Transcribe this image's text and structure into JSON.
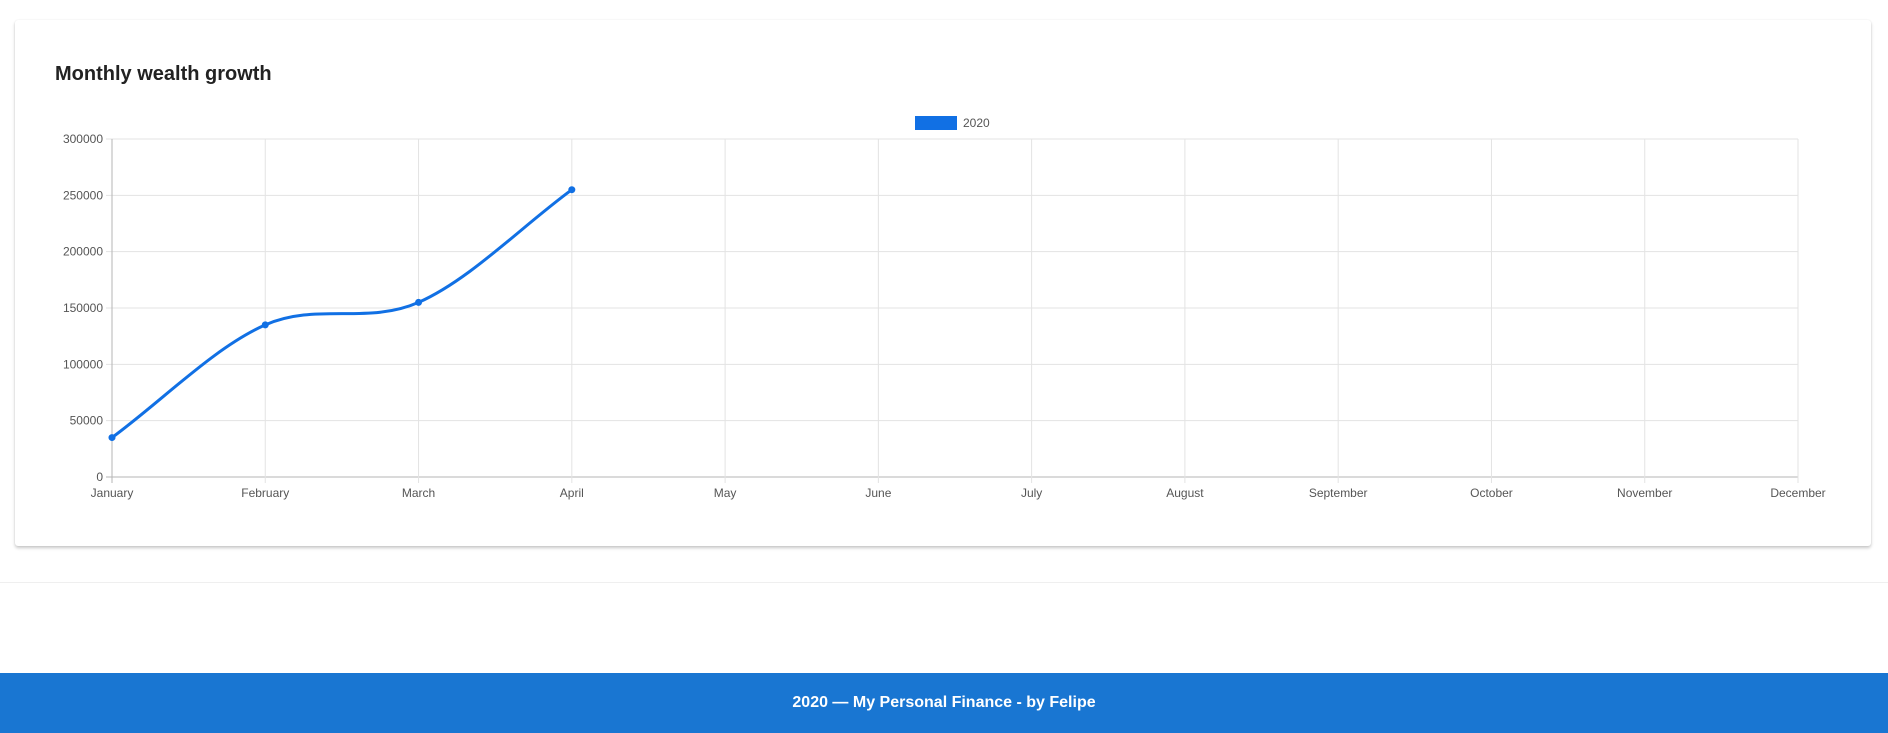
{
  "card": {
    "title": "Monthly wealth growth"
  },
  "chart_data": {
    "type": "line",
    "title": "Monthly wealth growth",
    "categories": [
      "January",
      "February",
      "March",
      "April",
      "May",
      "June",
      "July",
      "August",
      "September",
      "October",
      "November",
      "December"
    ],
    "series": [
      {
        "name": "2020",
        "color": "#1170e4",
        "values": [
          35000,
          135000,
          155000,
          255000,
          null,
          null,
          null,
          null,
          null,
          null,
          null,
          null
        ]
      }
    ],
    "yticks": [
      "0",
      "50000",
      "100000",
      "150000",
      "200000",
      "250000",
      "300000"
    ],
    "ylim": [
      0,
      300000
    ],
    "xlabel": "",
    "ylabel": "",
    "grid": true,
    "legend_position": "top-center",
    "smooth": true
  },
  "footer": {
    "text": "2020 — My Personal Finance - by Felipe",
    "background": "#1976d2"
  }
}
